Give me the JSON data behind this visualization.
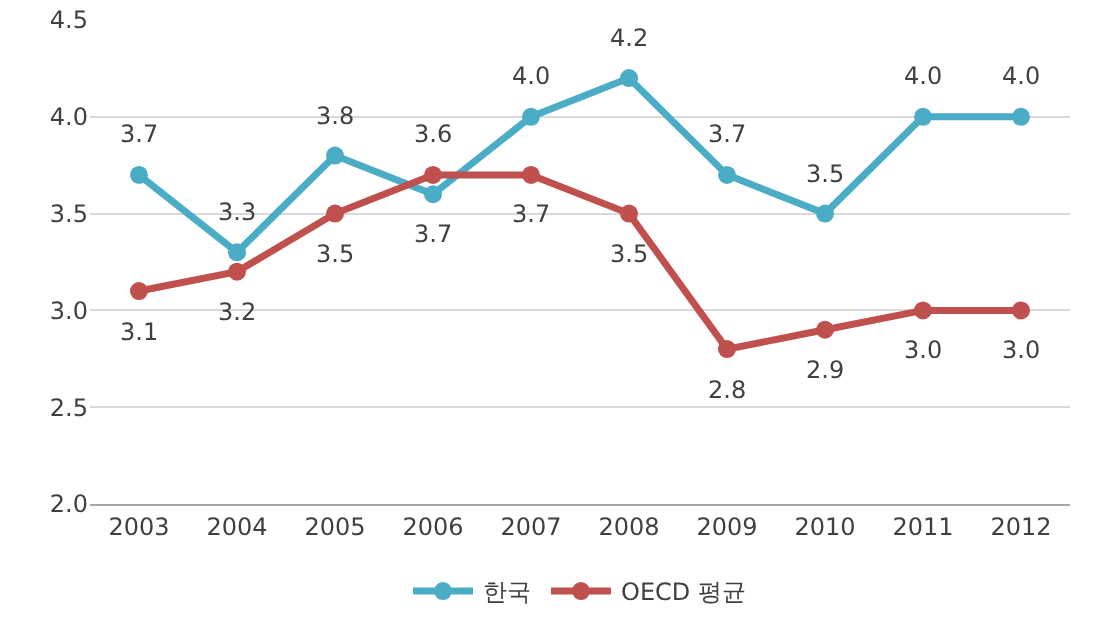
{
  "chart_data": {
    "type": "line",
    "categories": [
      "2003",
      "2004",
      "2005",
      "2006",
      "2007",
      "2008",
      "2009",
      "2010",
      "2011",
      "2012"
    ],
    "series": [
      {
        "name": "한국",
        "color": "#4bacc6",
        "values": [
          3.7,
          3.3,
          3.8,
          3.6,
          4.0,
          4.2,
          3.7,
          3.5,
          4.0,
          4.0
        ],
        "value_labels": [
          "3.7",
          "3.3",
          "3.8",
          "3.6",
          "4.0",
          "4.2",
          "3.7",
          "3.5",
          "4.0",
          "4.0"
        ]
      },
      {
        "name": "OECD 평균",
        "color": "#c0504d",
        "values": [
          3.1,
          3.2,
          3.5,
          3.7,
          3.7,
          3.5,
          2.8,
          2.9,
          3.0,
          3.0
        ],
        "value_labels": [
          "3.1",
          "3.2",
          "3.5",
          "3.7",
          "3.7",
          "3.5",
          "2.8",
          "2.9",
          "3.0",
          "3.0"
        ]
      }
    ],
    "ylim": [
      2,
      4.5
    ],
    "yticks": [
      {
        "value": 2,
        "label": "2.0"
      },
      {
        "value": 2.5,
        "label": "2.5"
      },
      {
        "value": 3,
        "label": "3.0"
      },
      {
        "value": 3.5,
        "label": "3.5"
      },
      {
        "value": 4,
        "label": "4.0"
      },
      {
        "value": 4.5,
        "label": "4.5"
      }
    ],
    "grid": "y",
    "legend": "bottom",
    "marker": "circle",
    "line_style": "solid"
  }
}
